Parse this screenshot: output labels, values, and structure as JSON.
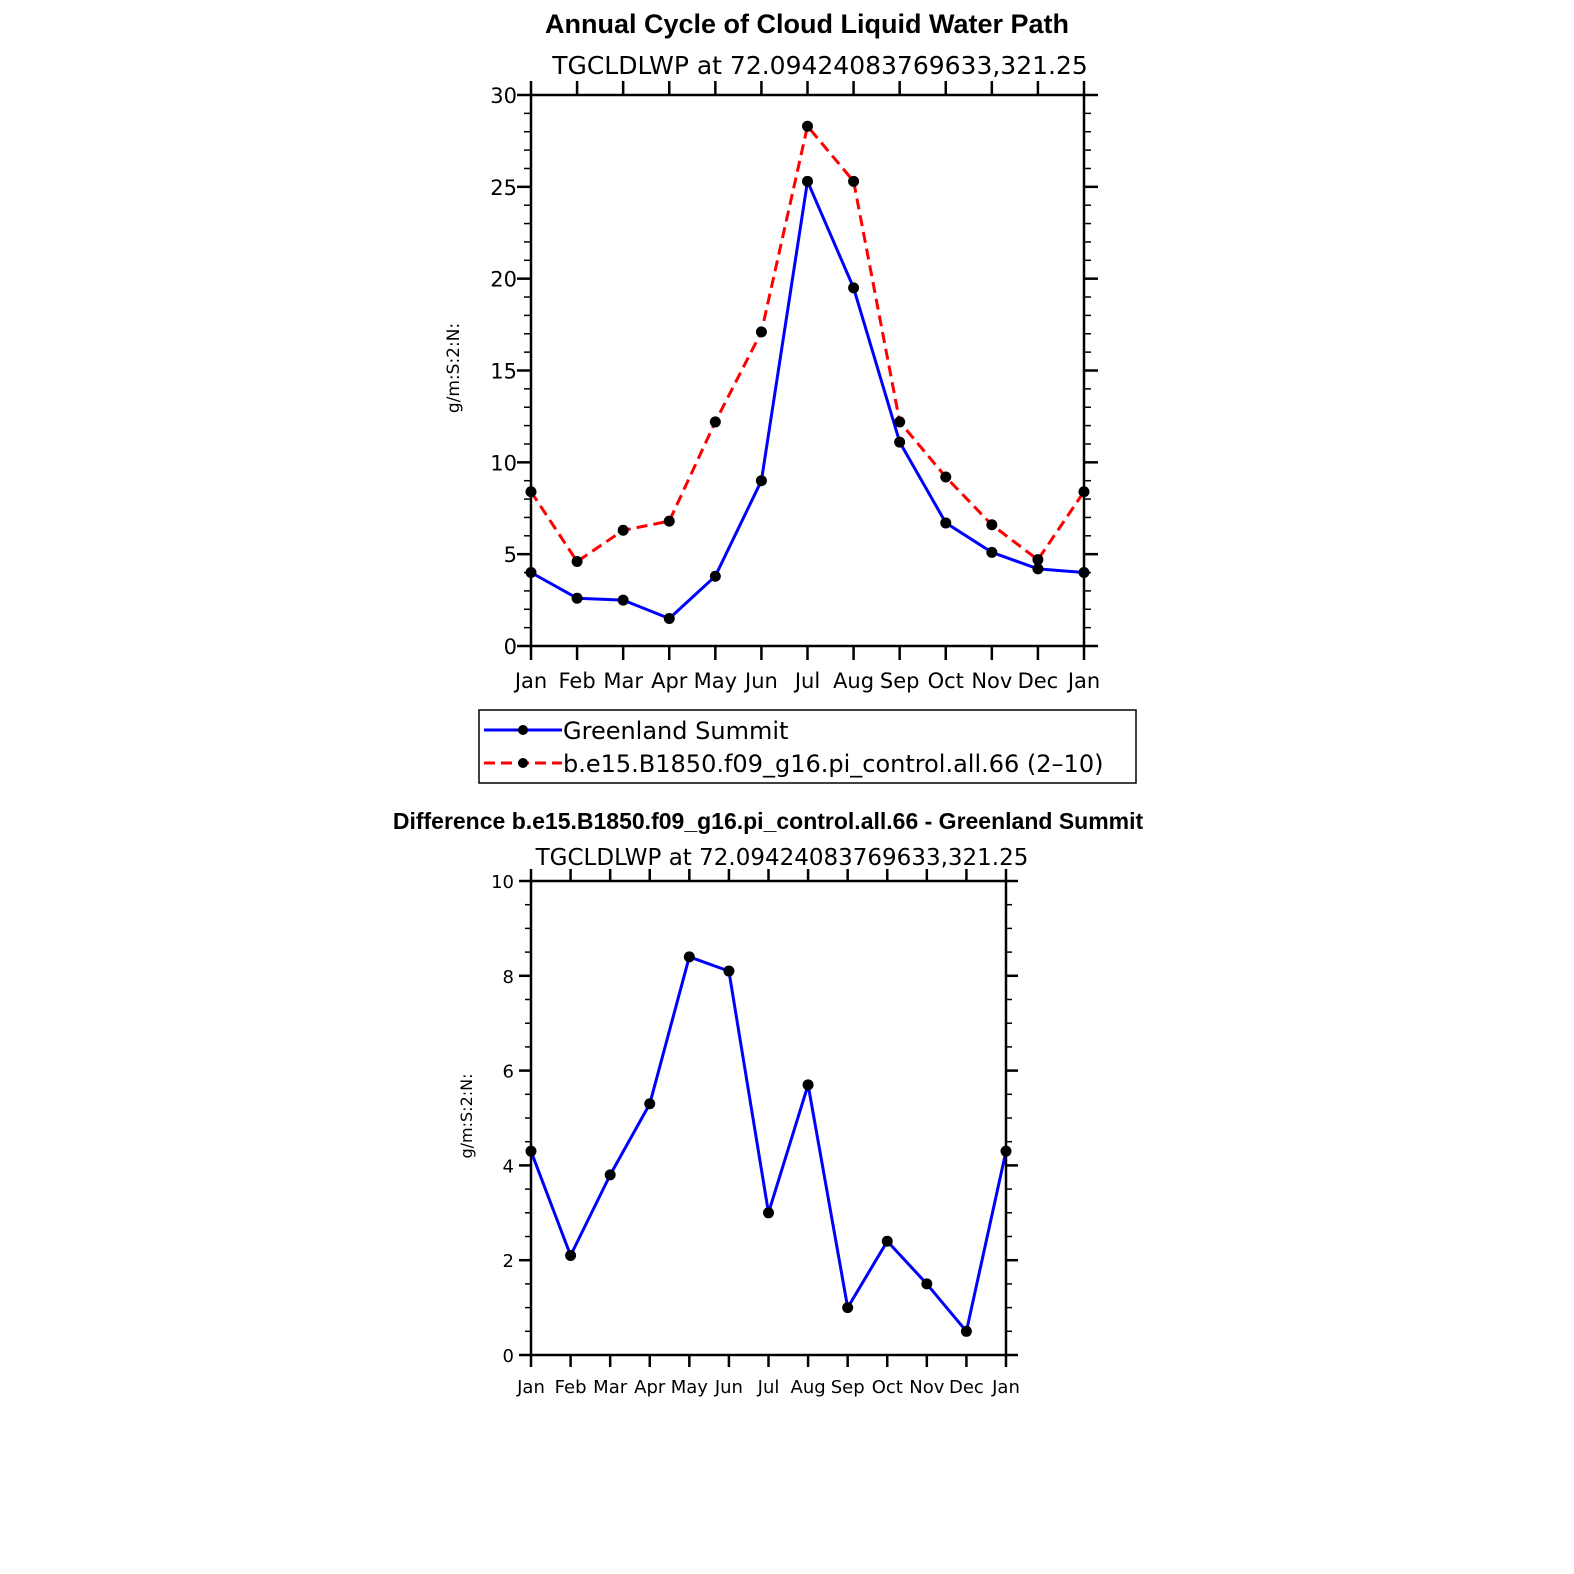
{
  "chart_data": [
    {
      "type": "line",
      "title": "Annual Cycle of Cloud Liquid Water Path",
      "subtitle": "TGCLDLWP at 72.09424083769633,321.25",
      "xlabel": "",
      "ylabel": "g/m:S:2:N:",
      "categories": [
        "Jan",
        "Feb",
        "Mar",
        "Apr",
        "May",
        "Jun",
        "Jul",
        "Aug",
        "Sep",
        "Oct",
        "Nov",
        "Dec",
        "Jan"
      ],
      "ylim": [
        0,
        30
      ],
      "yticks": [
        "0",
        "5",
        "10",
        "15",
        "20",
        "25",
        "30"
      ],
      "legend_position": "below",
      "series": [
        {
          "name": "Greenland Summit",
          "color": "#0000ff",
          "style": "solid",
          "values": [
            4.0,
            2.6,
            2.5,
            1.5,
            3.8,
            9.0,
            25.3,
            19.5,
            11.1,
            6.7,
            5.1,
            4.2,
            4.0
          ]
        },
        {
          "name": "b.e15.B1850.f09_g16.pi_control.all.66 (2–10)",
          "color": "#ff0000",
          "style": "dashed",
          "values": [
            8.4,
            4.6,
            6.3,
            6.8,
            12.2,
            17.1,
            28.3,
            25.3,
            12.2,
            9.2,
            6.6,
            4.7,
            8.4
          ]
        }
      ]
    },
    {
      "type": "line",
      "title": "Difference b.e15.B1850.f09_g16.pi_control.all.66 - Greenland Summit",
      "subtitle": "TGCLDLWP at 72.09424083769633,321.25",
      "xlabel": "",
      "ylabel": "g/m:S:2:N:",
      "categories": [
        "Jan",
        "Feb",
        "Mar",
        "Apr",
        "May",
        "Jun",
        "Jul",
        "Aug",
        "Sep",
        "Oct",
        "Nov",
        "Dec",
        "Jan"
      ],
      "ylim": [
        0,
        10
      ],
      "yticks": [
        "0",
        "2",
        "4",
        "6",
        "8",
        "10"
      ],
      "series": [
        {
          "name": "Difference",
          "color": "#0000ff",
          "style": "solid",
          "values": [
            4.3,
            2.1,
            3.8,
            5.3,
            8.4,
            8.1,
            3.0,
            5.7,
            1.0,
            2.4,
            1.5,
            0.5,
            4.3
          ]
        }
      ]
    }
  ]
}
